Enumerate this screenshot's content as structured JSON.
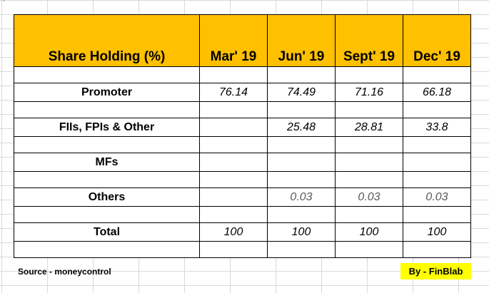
{
  "corner_mark": "`",
  "table": {
    "header": {
      "label": "Share Holding (%)",
      "periods": [
        "Mar' 19",
        "Jun' 19",
        "Sept' 19",
        "Dec' 19"
      ]
    },
    "rows": [
      {
        "label": "Promoter",
        "values": [
          "76.14",
          "74.49",
          "71.16",
          "66.18"
        ]
      },
      {
        "label": "FIIs, FPIs & Other",
        "values": [
          "",
          "25.48",
          "28.81",
          "33.8"
        ]
      },
      {
        "label": "MFs",
        "values": [
          "",
          "",
          "",
          ""
        ]
      },
      {
        "label": "Others",
        "values": [
          "",
          "0.03",
          "0.03",
          "0.03"
        ]
      },
      {
        "label": "Total",
        "values": [
          "100",
          "100",
          "100",
          "100"
        ]
      }
    ]
  },
  "footer": {
    "source": "Source - moneycontrol",
    "byline": "By - FinBlab"
  },
  "colors": {
    "header_fill": "#ffc000",
    "byline_fill": "#ffff00"
  }
}
